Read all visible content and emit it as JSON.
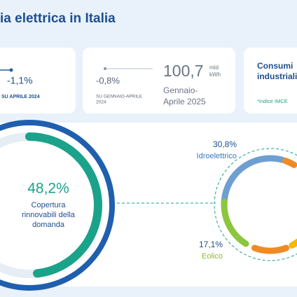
{
  "header": {
    "title": "ia elettrica in Italia"
  },
  "cards": [
    {
      "change": "-1,1%",
      "note": "SU APRILE 2024"
    },
    {
      "change": "-0,8%",
      "note_lines": [
        "SU GENNAIO-APRILE",
        "2024"
      ],
      "value": "100,7",
      "unit_top": "mld",
      "unit_bottom": "kWh",
      "period_lines": [
        "Gennaio-",
        "Aprile 2025"
      ]
    },
    {
      "title_lines": [
        "Consumi",
        "industriali"
      ],
      "note": "*Indice IMCE"
    }
  ],
  "coverage": {
    "value": 48.2,
    "value_label": "48,2%",
    "label_lines": [
      "Copertura",
      "rinnovabili della",
      "domanda"
    ]
  },
  "sources": [
    {
      "name": "Idroelettrico",
      "value": 30.8,
      "value_label": "30,8%"
    },
    {
      "name": "Eolico",
      "value": 17.1,
      "value_label": "17,1%"
    }
  ]
}
